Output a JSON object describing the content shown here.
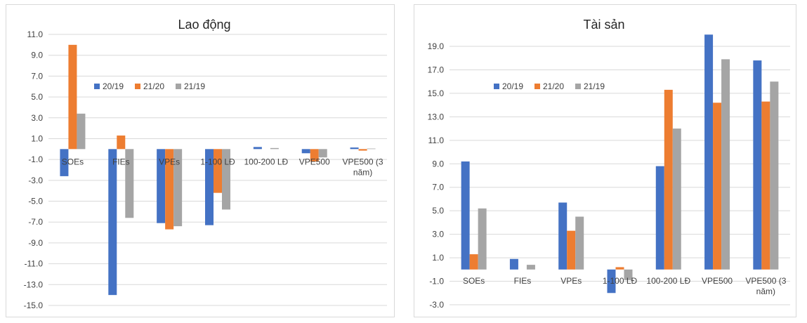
{
  "colors": {
    "s2019": "#4472c4",
    "s2120": "#ed7d31",
    "s2119": "#a5a5a5",
    "grid": "#d9d9d9",
    "text": "#404040"
  },
  "chart_data": [
    {
      "type": "bar",
      "title": "Lao động",
      "categories": [
        "SOEs",
        "FIEs",
        "VPEs",
        "1-100 LĐ",
        "100-200 LĐ",
        "VPE500",
        "VPE500 (3 năm)"
      ],
      "series": [
        {
          "name": "20/19",
          "values": [
            -2.6,
            -14.0,
            -7.1,
            -7.3,
            0.2,
            -0.4,
            0.15
          ]
        },
        {
          "name": "21/20",
          "values": [
            10.0,
            1.3,
            -7.7,
            -4.2,
            0.0,
            -1.2,
            -0.15
          ]
        },
        {
          "name": "21/19",
          "values": [
            3.4,
            -6.6,
            -7.4,
            -5.8,
            0.1,
            -0.8,
            0.05
          ]
        }
      ],
      "ylim": [
        -15.0,
        11.0
      ],
      "yticks": [
        "11.0",
        "9.0",
        "7.0",
        "5.0",
        "3.0",
        "1.0",
        "-1.0",
        "-3.0",
        "-5.0",
        "-7.0",
        "-9.0",
        "-11.0",
        "-13.0",
        "-15.0"
      ],
      "grid": true,
      "legend": "upper-left inside plot"
    },
    {
      "type": "bar",
      "title": "Tài sản",
      "categories": [
        "SOEs",
        "FIEs",
        "VPEs",
        "1-100 LĐ",
        "100-200 LĐ",
        "VPE500",
        "VPE500 (3 năm)"
      ],
      "series": [
        {
          "name": "20/19",
          "values": [
            9.2,
            0.9,
            5.7,
            -2.0,
            8.8,
            20.0,
            17.8
          ]
        },
        {
          "name": "21/20",
          "values": [
            1.3,
            0.0,
            3.3,
            0.2,
            15.3,
            14.2,
            14.3
          ]
        },
        {
          "name": "21/19",
          "values": [
            5.2,
            0.4,
            4.5,
            -0.9,
            12.0,
            17.9,
            16.0
          ]
        }
      ],
      "ylim": [
        -3.0,
        19.0
      ],
      "yticks": [
        "19.0",
        "17.0",
        "15.0",
        "13.0",
        "11.0",
        "9.0",
        "7.0",
        "5.0",
        "3.0",
        "1.0",
        "-1.0",
        "-3.0"
      ],
      "grid": true,
      "legend": "upper-left inside plot"
    }
  ]
}
